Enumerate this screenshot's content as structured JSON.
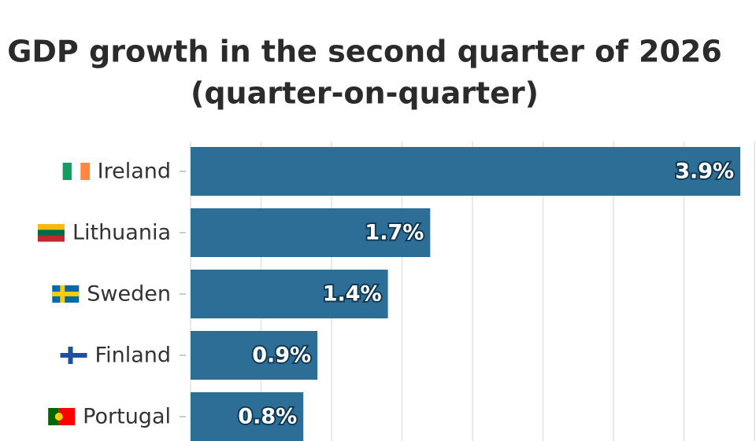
{
  "chart_data": {
    "type": "hbar",
    "title": "GDP growth in the second quarter of 2026",
    "subtitle": "(quarter-on-quarter)",
    "categories": [
      "Ireland",
      "Lithuania",
      "Sweden",
      "Finland",
      "Portugal"
    ],
    "values": [
      3.9,
      1.7,
      1.4,
      0.9,
      0.8
    ],
    "value_labels": [
      "3.9%",
      "1.7%",
      "1.4%",
      "0.9%",
      "0.8%"
    ],
    "color": "#2d6e96",
    "xlim": [
      0,
      4
    ],
    "xticks": [
      0,
      0.5,
      1,
      1.5,
      2,
      2.5,
      3,
      3.5,
      4
    ],
    "grid": true
  }
}
